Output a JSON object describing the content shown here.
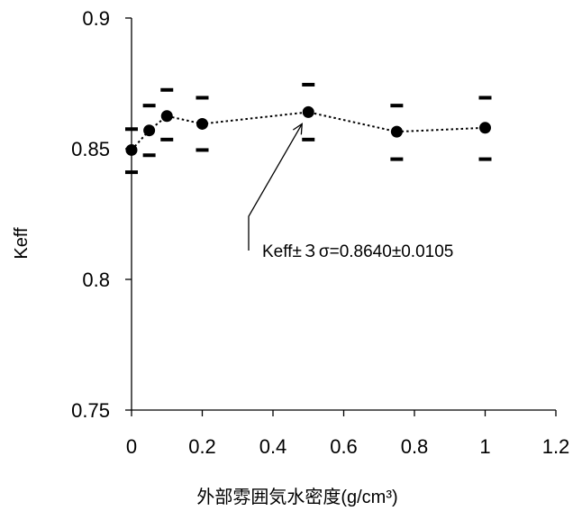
{
  "chart_data": {
    "type": "scatter",
    "title": "",
    "xlabel": "外部雰囲気水密度(g/cm³)",
    "ylabel": "Keff",
    "xlim": [
      0,
      1.2
    ],
    "ylim": [
      0.75,
      0.9
    ],
    "xticks": [
      "0",
      "0.2",
      "0.4",
      "0.6",
      "0.8",
      "1",
      "1.2"
    ],
    "yticks": [
      "0.75",
      "0.8",
      "0.85",
      "0.9"
    ],
    "grid": false,
    "legend": "none",
    "connector": "dotted",
    "series": [
      {
        "x": [
          0,
          0.05,
          0.1,
          0.2,
          0.5,
          0.75,
          1.0
        ],
        "y": [
          0.8495,
          0.857,
          0.8625,
          0.8595,
          0.864,
          0.8565,
          0.858
        ],
        "error_upper": [
          0.8575,
          0.8665,
          0.8725,
          0.8695,
          0.8745,
          0.8665,
          0.8695
        ],
        "error_lower": [
          0.841,
          0.8475,
          0.8535,
          0.8495,
          0.8535,
          0.846,
          0.846
        ]
      }
    ],
    "annotation": {
      "text": "Keff±３σ=0.8640±0.0105",
      "points_to_x": 0.5,
      "points_to_y": 0.864
    }
  }
}
